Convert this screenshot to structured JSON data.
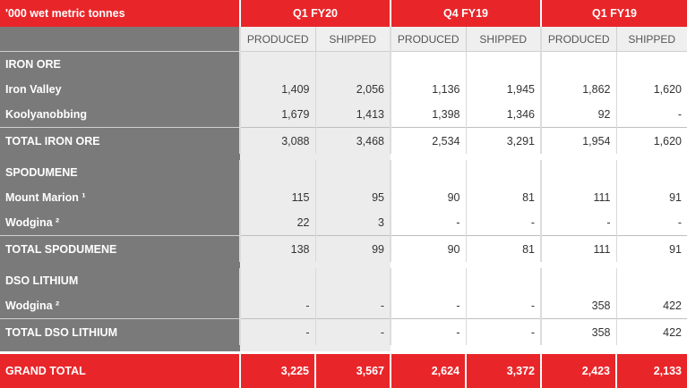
{
  "header": {
    "units_label": "'000 wet metric tonnes",
    "periods": [
      "Q1 FY20",
      "Q4 FY19",
      "Q1 FY19"
    ]
  },
  "subheaders": [
    "PRODUCED",
    "SHIPPED",
    "PRODUCED",
    "SHIPPED",
    "PRODUCED",
    "SHIPPED"
  ],
  "sections": [
    {
      "title": "IRON ORE",
      "rows": [
        {
          "label": "Iron Valley",
          "values": [
            "1,409",
            "2,056",
            "1,136",
            "1,945",
            "1,862",
            "1,620"
          ]
        },
        {
          "label": "Koolyanobbing",
          "values": [
            "1,679",
            "1,413",
            "1,398",
            "1,346",
            "92",
            "-"
          ]
        }
      ],
      "total": {
        "label": "TOTAL IRON ORE",
        "values": [
          "3,088",
          "3,468",
          "2,534",
          "3,291",
          "1,954",
          "1,620"
        ]
      }
    },
    {
      "title": "SPODUMENE",
      "rows": [
        {
          "label": "Mount Marion ¹",
          "values": [
            "115",
            "95",
            "90",
            "81",
            "111",
            "91"
          ]
        },
        {
          "label": "Wodgina ²",
          "values": [
            "22",
            "3",
            "-",
            "-",
            "-",
            "-"
          ]
        }
      ],
      "total": {
        "label": "TOTAL SPODUMENE",
        "values": [
          "138",
          "99",
          "90",
          "81",
          "111",
          "91"
        ]
      }
    },
    {
      "title": "DSO LITHIUM",
      "rows": [
        {
          "label": "Wodgina ²",
          "values": [
            "-",
            "-",
            "-",
            "-",
            "358",
            "422"
          ]
        }
      ],
      "total": {
        "label": "TOTAL DSO LITHIUM",
        "values": [
          "-",
          "-",
          "-",
          "-",
          "358",
          "422"
        ]
      }
    }
  ],
  "grand_total": {
    "label": "GRAND TOTAL",
    "values": [
      "3,225",
      "3,567",
      "2,624",
      "3,372",
      "2,423",
      "2,133"
    ]
  },
  "colors": {
    "accent_red": "#e8262a",
    "label_gray": "#7a7a7a",
    "shade_gray": "#ececec"
  }
}
